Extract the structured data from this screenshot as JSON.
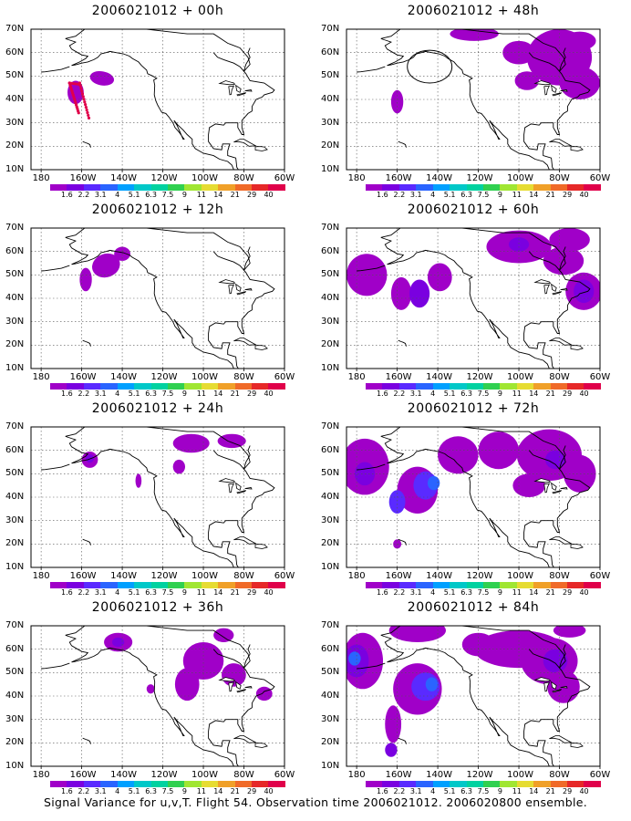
{
  "panels": [
    {
      "id": "p00h",
      "title": "2006021012 + 00h"
    },
    {
      "id": "p12h",
      "title": "2006021012 + 12h"
    },
    {
      "id": "p24h",
      "title": "2006021012 + 24h"
    },
    {
      "id": "p36h",
      "title": "2006021012 + 36h"
    },
    {
      "id": "p48h",
      "title": "2006021012 + 48h"
    },
    {
      "id": "p60h",
      "title": "2006021012 + 60h"
    },
    {
      "id": "p72h",
      "title": "2006021012 + 72h"
    },
    {
      "id": "p84h",
      "title": "2006021012 + 84h"
    }
  ],
  "lat_labels": [
    "70N",
    "60N",
    "50N",
    "40N",
    "30N",
    "20N",
    "10N"
  ],
  "lon_labels": [
    "180",
    "160W",
    "140W",
    "120W",
    "100W",
    "80W",
    "60W"
  ],
  "colorbar": {
    "labels": [
      "1.6",
      "2.2",
      "3.1",
      "4",
      "5.1",
      "6.3",
      "7.5",
      "9",
      "11",
      "14",
      "21",
      "29",
      "40"
    ],
    "colors": [
      "#a000c8",
      "#7a00e0",
      "#5a2aff",
      "#2a64ff",
      "#00a0ff",
      "#00c8c8",
      "#00d2a0",
      "#30d050",
      "#a0e632",
      "#e6dc32",
      "#f0a028",
      "#f06a28",
      "#e62828",
      "#e0004a"
    ]
  },
  "caption": "Signal Variance for u,v,T. Flight 54. Observation time 2006021012. 2006020800 ensemble."
}
